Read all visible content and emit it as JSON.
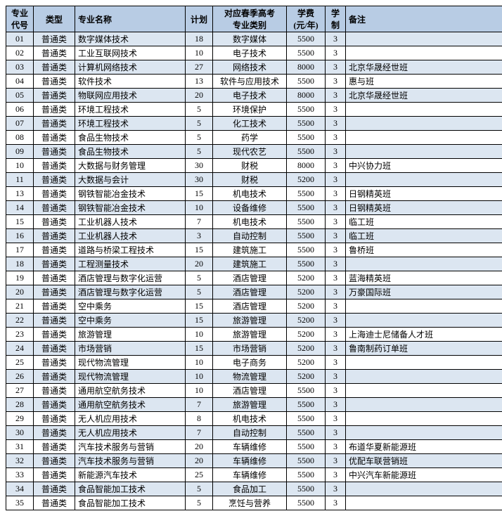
{
  "table": {
    "header_bg": "#b8cce4",
    "alt_bg": "#dce6f1",
    "columns": [
      {
        "key": "code",
        "label": "专业代号",
        "class": "c-code"
      },
      {
        "key": "type",
        "label": "类型",
        "class": "c-type"
      },
      {
        "key": "name",
        "label": "专业名称",
        "class": "c-name"
      },
      {
        "key": "plan",
        "label": "计划",
        "class": "c-plan"
      },
      {
        "key": "cat",
        "label": "对应春季高考专业类别",
        "class": "c-cat"
      },
      {
        "key": "fee",
        "label": "学费(元/年)",
        "class": "c-fee"
      },
      {
        "key": "dur",
        "label": "学制",
        "class": "c-dur"
      },
      {
        "key": "note",
        "label": "备注",
        "class": "c-note"
      }
    ],
    "rows": [
      {
        "code": "01",
        "type": "普通类",
        "name": "数字媒体技术",
        "plan": "18",
        "cat": "数字媒体",
        "fee": "5500",
        "dur": "3",
        "note": ""
      },
      {
        "code": "02",
        "type": "普通类",
        "name": "工业互联网技术",
        "plan": "10",
        "cat": "电子技术",
        "fee": "5500",
        "dur": "3",
        "note": ""
      },
      {
        "code": "03",
        "type": "普通类",
        "name": "计算机网络技术",
        "plan": "27",
        "cat": "网络技术",
        "fee": "8000",
        "dur": "3",
        "note": "北京华晟经世班"
      },
      {
        "code": "04",
        "type": "普通类",
        "name": "软件技术",
        "plan": "13",
        "cat": "软件与应用技术",
        "fee": "5500",
        "dur": "3",
        "note": "惠与班"
      },
      {
        "code": "05",
        "type": "普通类",
        "name": "物联网应用技术",
        "plan": "20",
        "cat": "电子技术",
        "fee": "8000",
        "dur": "3",
        "note": "北京华晟经世班"
      },
      {
        "code": "06",
        "type": "普通类",
        "name": "环境工程技术",
        "plan": "5",
        "cat": "环境保护",
        "fee": "5500",
        "dur": "3",
        "note": ""
      },
      {
        "code": "07",
        "type": "普通类",
        "name": "环境工程技术",
        "plan": "5",
        "cat": "化工技术",
        "fee": "5500",
        "dur": "3",
        "note": ""
      },
      {
        "code": "08",
        "type": "普通类",
        "name": "食品生物技术",
        "plan": "5",
        "cat": "药学",
        "fee": "5500",
        "dur": "3",
        "note": ""
      },
      {
        "code": "09",
        "type": "普通类",
        "name": "食品生物技术",
        "plan": "5",
        "cat": "现代农艺",
        "fee": "5500",
        "dur": "3",
        "note": ""
      },
      {
        "code": "10",
        "type": "普通类",
        "name": "大数据与财务管理",
        "plan": "30",
        "cat": "财税",
        "fee": "8000",
        "dur": "3",
        "note": "中兴协力班"
      },
      {
        "code": "11",
        "type": "普通类",
        "name": "大数据与会计",
        "plan": "30",
        "cat": "财税",
        "fee": "5200",
        "dur": "3",
        "note": ""
      },
      {
        "code": "13",
        "type": "普通类",
        "name": "钢铁智能冶金技术",
        "plan": "15",
        "cat": "机电技术",
        "fee": "5500",
        "dur": "3",
        "note": "日钢精英班"
      },
      {
        "code": "14",
        "type": "普通类",
        "name": "钢铁智能冶金技术",
        "plan": "10",
        "cat": "设备维修",
        "fee": "5500",
        "dur": "3",
        "note": "日钢精英班"
      },
      {
        "code": "15",
        "type": "普通类",
        "name": "工业机器人技术",
        "plan": "7",
        "cat": "机电技术",
        "fee": "5500",
        "dur": "3",
        "note": "临工班"
      },
      {
        "code": "16",
        "type": "普通类",
        "name": "工业机器人技术",
        "plan": "3",
        "cat": "自动控制",
        "fee": "5500",
        "dur": "3",
        "note": "临工班"
      },
      {
        "code": "17",
        "type": "普通类",
        "name": "道路与桥梁工程技术",
        "plan": "15",
        "cat": "建筑施工",
        "fee": "5500",
        "dur": "3",
        "note": "鲁桥班"
      },
      {
        "code": "18",
        "type": "普通类",
        "name": "工程测量技术",
        "plan": "20",
        "cat": "建筑施工",
        "fee": "5500",
        "dur": "3",
        "note": ""
      },
      {
        "code": "19",
        "type": "普通类",
        "name": "酒店管理与数字化运营",
        "plan": "5",
        "cat": "酒店管理",
        "fee": "5200",
        "dur": "3",
        "note": "蓝海精英班"
      },
      {
        "code": "20",
        "type": "普通类",
        "name": "酒店管理与数字化运营",
        "plan": "5",
        "cat": "酒店管理",
        "fee": "5200",
        "dur": "3",
        "note": "万豪国际班"
      },
      {
        "code": "21",
        "type": "普通类",
        "name": "空中乘务",
        "plan": "15",
        "cat": "酒店管理",
        "fee": "5200",
        "dur": "3",
        "note": ""
      },
      {
        "code": "22",
        "type": "普通类",
        "name": "空中乘务",
        "plan": "15",
        "cat": "旅游管理",
        "fee": "5200",
        "dur": "3",
        "note": ""
      },
      {
        "code": "23",
        "type": "普通类",
        "name": "旅游管理",
        "plan": "10",
        "cat": "旅游管理",
        "fee": "5200",
        "dur": "3",
        "note": "上海迪士尼储备人才班"
      },
      {
        "code": "24",
        "type": "普通类",
        "name": "市场营销",
        "plan": "15",
        "cat": "市场营销",
        "fee": "5200",
        "dur": "3",
        "note": "鲁南制药订单班"
      },
      {
        "code": "25",
        "type": "普通类",
        "name": "现代物流管理",
        "plan": "10",
        "cat": "电子商务",
        "fee": "5200",
        "dur": "3",
        "note": ""
      },
      {
        "code": "26",
        "type": "普通类",
        "name": "现代物流管理",
        "plan": "10",
        "cat": "物流管理",
        "fee": "5200",
        "dur": "3",
        "note": ""
      },
      {
        "code": "27",
        "type": "普通类",
        "name": "通用航空航务技术",
        "plan": "10",
        "cat": "酒店管理",
        "fee": "5500",
        "dur": "3",
        "note": ""
      },
      {
        "code": "28",
        "type": "普通类",
        "name": "通用航空航务技术",
        "plan": "7",
        "cat": "旅游管理",
        "fee": "5500",
        "dur": "3",
        "note": ""
      },
      {
        "code": "29",
        "type": "普通类",
        "name": "无人机应用技术",
        "plan": "8",
        "cat": "机电技术",
        "fee": "5500",
        "dur": "3",
        "note": ""
      },
      {
        "code": "30",
        "type": "普通类",
        "name": "无人机应用技术",
        "plan": "7",
        "cat": "自动控制",
        "fee": "5500",
        "dur": "3",
        "note": ""
      },
      {
        "code": "31",
        "type": "普通类",
        "name": "汽车技术服务与营销",
        "plan": "20",
        "cat": "车辆维修",
        "fee": "5500",
        "dur": "3",
        "note": "布道华夏新能源班"
      },
      {
        "code": "32",
        "type": "普通类",
        "name": "汽车技术服务与营销",
        "plan": "20",
        "cat": "车辆维修",
        "fee": "5500",
        "dur": "3",
        "note": "优配车联营销班"
      },
      {
        "code": "33",
        "type": "普通类",
        "name": "新能源汽车技术",
        "plan": "25",
        "cat": "车辆维修",
        "fee": "5500",
        "dur": "3",
        "note": "中兴汽车新能源班"
      },
      {
        "code": "34",
        "type": "普通类",
        "name": "食品智能加工技术",
        "plan": "5",
        "cat": "食品加工",
        "fee": "5500",
        "dur": "3",
        "note": ""
      },
      {
        "code": "35",
        "type": "普通类",
        "name": "食品智能加工技术",
        "plan": "5",
        "cat": "烹饪与营养",
        "fee": "5500",
        "dur": "3",
        "note": ""
      }
    ],
    "alt_start_parity": 0
  }
}
